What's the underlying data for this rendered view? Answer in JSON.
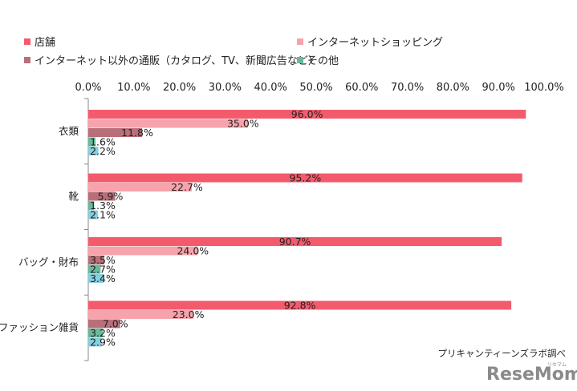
{
  "chart_data": {
    "type": "bar",
    "orientation": "horizontal",
    "categories": [
      "衣類",
      "靴",
      "バッグ・財布",
      "ファッション雑貨"
    ],
    "series": [
      {
        "name": "店舗",
        "color": "#f35b6d",
        "values": [
          96.0,
          95.2,
          90.7,
          92.8
        ],
        "labels": [
          "96.0%",
          "95.2%",
          "90.7%",
          "92.8%"
        ]
      },
      {
        "name": "インターネットショッピング",
        "color": "#f6a3ac",
        "values": [
          35.0,
          22.7,
          24.0,
          23.0
        ],
        "labels": [
          "35.0%",
          "22.7%",
          "24.0%",
          "23.0%"
        ]
      },
      {
        "name": "インターネット以外の通販（カタログ、TV、新聞広告など）",
        "color": "#b96f79",
        "values": [
          11.8,
          5.9,
          3.5,
          7.0
        ],
        "labels": [
          "11.8%",
          "5.9%",
          "3.5%",
          "7.0%"
        ]
      },
      {
        "name": "その他",
        "color": "#6ab99a",
        "values": [
          1.6,
          1.3,
          2.7,
          3.2
        ],
        "labels": [
          "1.6%",
          "1.3%",
          "2.7%",
          "3.2%"
        ]
      },
      {
        "name": "",
        "color": "#85cfe0",
        "values": [
          2.2,
          2.1,
          3.4,
          2.9
        ],
        "labels": [
          "2.2%",
          "2.1%",
          "3.4%",
          "2.9%"
        ]
      }
    ],
    "xlim": [
      0,
      100
    ],
    "ticks": [
      "0.0%",
      "10.0%",
      "20.0%",
      "30.0%",
      "40.0%",
      "50.0%",
      "60.0%",
      "70.0%",
      "80.0%",
      "90.0%",
      "100.0%"
    ],
    "tick_values": [
      0,
      10,
      20,
      30,
      40,
      50,
      60,
      70,
      80,
      90,
      100
    ],
    "legend_position": "top",
    "grid": false,
    "source_note": "プリキャンティーンズラボ調べ"
  },
  "logo": {
    "text": "ReseMom",
    "subtext": "リセマム"
  }
}
